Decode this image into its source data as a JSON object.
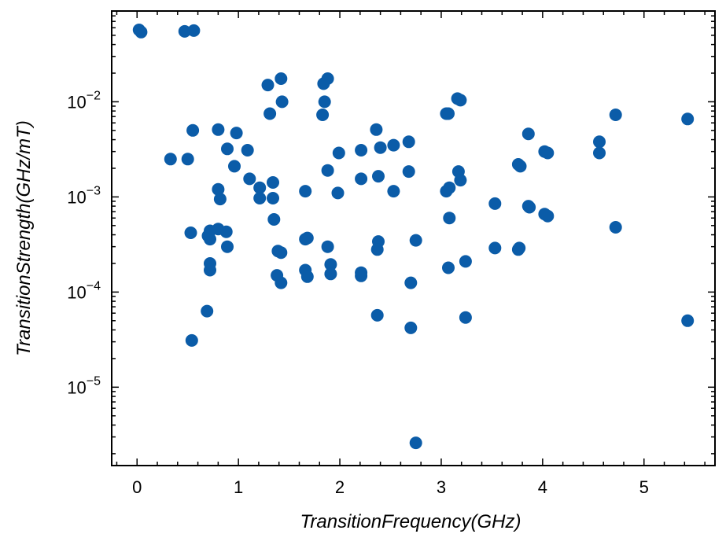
{
  "chart_data": {
    "type": "scatter",
    "xlabel": "TransitionFrequency(GHz)",
    "ylabel": "TransitionStrength(GHz/mT)",
    "xlim": [
      -0.25,
      5.7
    ],
    "ylim": [
      1.5e-06,
      0.09
    ],
    "yscale": "log",
    "grid": false,
    "x_ticks": [
      0,
      1,
      2,
      3,
      4,
      5
    ],
    "x_tick_labels": [
      "0",
      "1",
      "2",
      "3",
      "4",
      "5"
    ],
    "y_ticks": [
      1e-05,
      0.0001,
      0.001,
      0.01
    ],
    "y_tick_labels": [
      {
        "base": "10",
        "exp": "−5"
      },
      {
        "base": "10",
        "exp": "−4"
      },
      {
        "base": "10",
        "exp": "−3"
      },
      {
        "base": "10",
        "exp": "−2"
      }
    ],
    "marker_color": "#0b5ca8",
    "points": [
      [
        0.02,
        0.057
      ],
      [
        0.04,
        0.054
      ],
      [
        0.47,
        0.055
      ],
      [
        0.56,
        0.056
      ],
      [
        0.33,
        0.0025
      ],
      [
        0.5,
        0.0025
      ],
      [
        0.55,
        0.005
      ],
      [
        0.8,
        0.0051
      ],
      [
        0.98,
        0.0047
      ],
      [
        0.89,
        0.0032
      ],
      [
        1.09,
        0.0031
      ],
      [
        0.96,
        0.0021
      ],
      [
        1.11,
        0.00155
      ],
      [
        0.8,
        0.0012
      ],
      [
        0.82,
        0.00095
      ],
      [
        1.21,
        0.00125
      ],
      [
        1.21,
        0.00097
      ],
      [
        1.34,
        0.00142
      ],
      [
        1.34,
        0.00097
      ],
      [
        0.53,
        0.00042
      ],
      [
        0.7,
        0.00039
      ],
      [
        0.72,
        0.00044
      ],
      [
        0.72,
        0.00036
      ],
      [
        0.8,
        0.00046
      ],
      [
        0.88,
        0.00043
      ],
      [
        0.89,
        0.0003
      ],
      [
        0.72,
        0.0002
      ],
      [
        0.72,
        0.00017
      ],
      [
        0.69,
        6.3e-05
      ],
      [
        0.54,
        3.1e-05
      ],
      [
        1.35,
        0.00058
      ],
      [
        1.39,
        0.00027
      ],
      [
        1.42,
        0.00026
      ],
      [
        1.38,
        0.00015
      ],
      [
        1.42,
        0.000125
      ],
      [
        1.29,
        0.015
      ],
      [
        1.42,
        0.0175
      ],
      [
        1.31,
        0.0075
      ],
      [
        1.43,
        0.01
      ],
      [
        1.66,
        0.00115
      ],
      [
        1.66,
        0.00036
      ],
      [
        1.68,
        0.00037
      ],
      [
        1.66,
        0.00017
      ],
      [
        1.68,
        0.000145
      ],
      [
        1.84,
        0.0155
      ],
      [
        1.88,
        0.0175
      ],
      [
        1.85,
        0.01
      ],
      [
        1.83,
        0.0073
      ],
      [
        1.88,
        0.0019
      ],
      [
        1.99,
        0.0029
      ],
      [
        1.98,
        0.0011
      ],
      [
        1.88,
        0.0003
      ],
      [
        1.91,
        0.000195
      ],
      [
        1.91,
        0.000155
      ],
      [
        2.21,
        0.0031
      ],
      [
        2.21,
        0.00155
      ],
      [
        2.21,
        0.00016
      ],
      [
        2.21,
        0.000148
      ],
      [
        2.36,
        0.0051
      ],
      [
        2.4,
        0.0033
      ],
      [
        2.38,
        0.00165
      ],
      [
        2.38,
        0.00034
      ],
      [
        2.37,
        0.00028
      ],
      [
        2.37,
        5.7e-05
      ],
      [
        2.53,
        0.0035
      ],
      [
        2.53,
        0.00115
      ],
      [
        2.68,
        0.0038
      ],
      [
        2.68,
        0.00185
      ],
      [
        2.7,
        0.000125
      ],
      [
        2.7,
        4.2e-05
      ],
      [
        2.75,
        0.00035
      ],
      [
        2.75,
        2.6e-06
      ],
      [
        3.05,
        0.0075
      ],
      [
        3.07,
        0.0075
      ],
      [
        3.05,
        0.00115
      ],
      [
        3.08,
        0.00125
      ],
      [
        3.08,
        0.0006
      ],
      [
        3.07,
        0.00018
      ],
      [
        3.16,
        0.0108
      ],
      [
        3.19,
        0.0104
      ],
      [
        3.17,
        0.00185
      ],
      [
        3.19,
        0.0015
      ],
      [
        3.24,
        0.00021
      ],
      [
        3.24,
        5.4e-05
      ],
      [
        3.53,
        0.00085
      ],
      [
        3.53,
        0.00029
      ],
      [
        3.76,
        0.0022
      ],
      [
        3.78,
        0.0021
      ],
      [
        3.77,
        0.00029
      ],
      [
        3.76,
        0.00028
      ],
      [
        3.86,
        0.0046
      ],
      [
        3.86,
        0.0008
      ],
      [
        3.87,
        0.00078
      ],
      [
        4.02,
        0.003
      ],
      [
        4.05,
        0.0029
      ],
      [
        4.02,
        0.00066
      ],
      [
        4.05,
        0.00063
      ],
      [
        4.56,
        0.0038
      ],
      [
        4.56,
        0.0029
      ],
      [
        4.72,
        0.0073
      ],
      [
        4.72,
        0.00048
      ],
      [
        5.43,
        0.0066
      ],
      [
        5.43,
        5e-05
      ]
    ]
  }
}
